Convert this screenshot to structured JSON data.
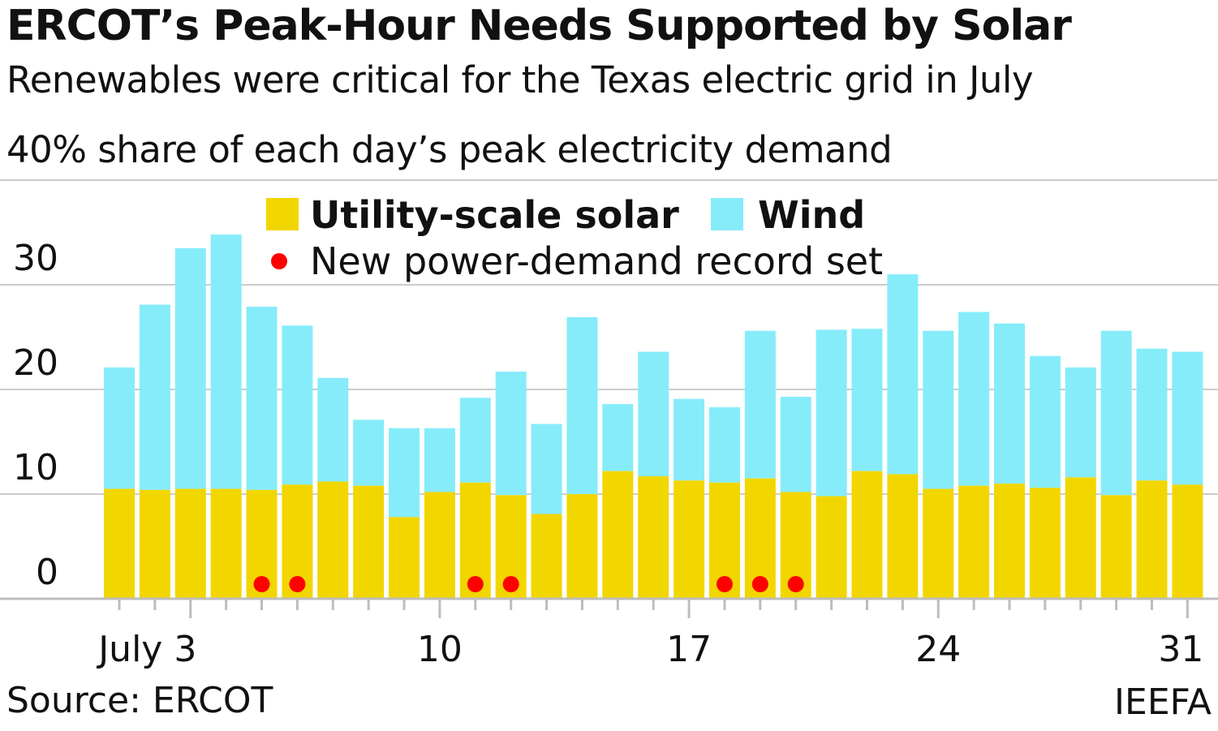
{
  "header": {
    "title": "ERCOT’s Peak-Hour Needs Supported by Solar",
    "subtitle": "Renewables were critical for the Texas electric grid in July",
    "ylabel": "40% share of each day’s peak electricity demand"
  },
  "footer": {
    "source": "Source: ERCOT",
    "credit": "IEEFA"
  },
  "colors": {
    "solar": "#f2d600",
    "wind": "#86ecfa",
    "record": "#ff0000",
    "grid": "#cccccc",
    "axis": "#bdbdbd"
  },
  "chart_data": {
    "type": "bar",
    "stacked": true,
    "xlabel": "",
    "ylabel": "40% share of each day’s peak electricity demand",
    "ylim": [
      0,
      40
    ],
    "yticks": [
      0,
      10,
      20,
      30
    ],
    "grid": true,
    "legend": "top-center",
    "categories": [
      1,
      2,
      3,
      4,
      5,
      6,
      7,
      8,
      9,
      10,
      11,
      12,
      13,
      14,
      15,
      16,
      17,
      18,
      19,
      20,
      21,
      22,
      23,
      24,
      25,
      26,
      27,
      28,
      29,
      30,
      31
    ],
    "xtick_labels": [
      {
        "day": 3,
        "label": "July 3"
      },
      {
        "day": 10,
        "label": "10"
      },
      {
        "day": 17,
        "label": "17"
      },
      {
        "day": 24,
        "label": "24"
      },
      {
        "day": 31,
        "label": "31"
      }
    ],
    "series": [
      {
        "name": "Utility-scale solar",
        "values": [
          10.5,
          10.4,
          10.5,
          10.5,
          10.4,
          10.9,
          11.2,
          10.8,
          7.8,
          10.2,
          11.1,
          9.9,
          8.1,
          10.0,
          12.2,
          11.7,
          11.3,
          11.1,
          11.5,
          10.2,
          9.8,
          12.2,
          11.9,
          10.5,
          10.8,
          11.0,
          10.6,
          11.6,
          9.9,
          11.3,
          10.9
        ]
      },
      {
        "name": "Wind",
        "values": [
          11.6,
          17.7,
          23.0,
          24.3,
          17.5,
          15.2,
          9.9,
          6.3,
          8.5,
          6.1,
          8.1,
          11.8,
          8.6,
          16.9,
          6.4,
          11.9,
          7.8,
          7.2,
          14.1,
          9.1,
          15.9,
          13.6,
          19.1,
          15.1,
          16.6,
          15.3,
          12.6,
          10.5,
          15.7,
          12.6,
          12.7
        ]
      }
    ],
    "record_days": [
      5,
      6,
      11,
      12,
      18,
      19,
      20
    ],
    "record_label": "New power-demand record set"
  }
}
